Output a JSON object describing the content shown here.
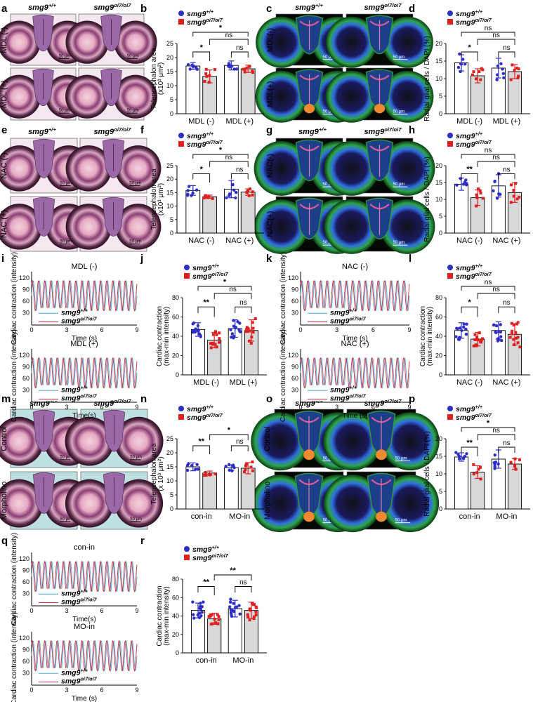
{
  "figure": {
    "panel_letters": [
      "a",
      "b",
      "c",
      "d",
      "e",
      "f",
      "g",
      "h",
      "i",
      "j",
      "k",
      "l",
      "m",
      "n",
      "o",
      "p",
      "q",
      "r"
    ],
    "genotype_wt": "smg9+/+",
    "genotype_mut": "smg9oi7/oi7",
    "scale_bar": "50 μm",
    "colors": {
      "wt": "#2d2dc8",
      "mut": "#e02020",
      "wt_trace": "#4aa8d8",
      "mut_trace": "#d42a3a",
      "bar_mut": "#d8d8d8"
    },
    "row_labels": {
      "a": [
        "MDL (-)",
        "MDL (+)"
      ],
      "c": [
        "MDL(-)",
        "MDL(+)"
      ],
      "e": [
        "NAC (-)",
        "NAC (+)"
      ],
      "g": [
        "NAC(-)",
        "NAC(+)"
      ],
      "m": [
        "Control",
        "Morpholino"
      ],
      "o": [
        "Control",
        "Morpholino"
      ]
    },
    "traces": {
      "i": [
        "MDL (-)",
        "MDL (+)"
      ],
      "k": [
        "NAC (-)",
        "NAC (+)"
      ],
      "q": [
        "con-in",
        "MO-in"
      ],
      "ylabel": "Cardiac contraction (intensity)",
      "xlabel": "Time (s)",
      "xlabel_alt": "Time(s)",
      "xticks": [
        "0",
        "3",
        "6",
        "9"
      ],
      "yticks": [
        "30",
        "60",
        "90",
        "120"
      ]
    },
    "labels": {
      "tel_area": "Telencephalon area",
      "tel_unit": "(x10³ μm²)",
      "tel_unit_alt": "(x 10³ μm²)",
      "radial": "Radial glial cells / DAPI (%)",
      "cardiac": "Cardiac contraction",
      "cardiac_unit": "(max-min intensity)",
      "ns": "ns",
      "star1": "*",
      "star2": "**"
    }
  },
  "chart_data": [
    {
      "panel": "b",
      "type": "bar",
      "categories": [
        "MDL (-)",
        "MDL (+)"
      ],
      "ylabel": "Telencephalon area (x10³ μm²)",
      "ylim": [
        0,
        25
      ],
      "yticks": [
        0,
        5,
        10,
        15,
        20,
        25
      ],
      "series": [
        {
          "name": "smg9+/+",
          "values": [
            17.0,
            17.2
          ],
          "err": [
            1.2,
            1.6
          ]
        },
        {
          "name": "smg9oi7/oi7",
          "values": [
            13.3,
            16.0
          ],
          "err": [
            2.3,
            1.3
          ]
        }
      ],
      "significance": [
        "*",
        "ns",
        "*",
        "ns"
      ]
    },
    {
      "panel": "d",
      "type": "bar",
      "categories": [
        "MDL (-)",
        "MDL (+)"
      ],
      "ylabel": "Radial glial cells / DAPI (%)",
      "ylim": [
        0,
        20
      ],
      "yticks": [
        0,
        5,
        10,
        15,
        20
      ],
      "series": [
        {
          "name": "smg9+/+",
          "values": [
            14.5,
            13.0
          ],
          "err": [
            2.3,
            2.8
          ]
        },
        {
          "name": "smg9oi7/oi7",
          "values": [
            10.8,
            12.0
          ],
          "err": [
            2.0,
            2.0
          ]
        }
      ],
      "significance": [
        "*",
        "ns",
        "ns",
        "ns"
      ]
    },
    {
      "panel": "f",
      "type": "bar",
      "categories": [
        "NAC (-)",
        "NAC (+)"
      ],
      "ylabel": "Telencephalon area (x10³ μm²)",
      "ylim": [
        0,
        25
      ],
      "yticks": [
        0,
        5,
        10,
        15,
        20,
        25
      ],
      "series": [
        {
          "name": "smg9+/+",
          "values": [
            15.8,
            16.3
          ],
          "err": [
            1.8,
            3.2
          ]
        },
        {
          "name": "smg9oi7/oi7",
          "values": [
            13.5,
            15.2
          ],
          "err": [
            0.6,
            1.2
          ]
        }
      ],
      "significance": [
        "*",
        "ns",
        "*",
        "ns"
      ]
    },
    {
      "panel": "h",
      "type": "bar",
      "categories": [
        "NAC (-)",
        "NAC (+)"
      ],
      "ylabel": "Radial glial cells / DAPI (%)",
      "ylim": [
        0,
        20
      ],
      "yticks": [
        0,
        5,
        10,
        15,
        20
      ],
      "series": [
        {
          "name": "smg9+/+",
          "values": [
            14.5,
            14.0
          ],
          "err": [
            1.8,
            3.3
          ]
        },
        {
          "name": "smg9oi7/oi7",
          "values": [
            10.5,
            12.0
          ],
          "err": [
            2.3,
            2.9
          ]
        }
      ],
      "significance": [
        "**",
        "ns",
        "ns",
        "ns"
      ]
    },
    {
      "panel": "j",
      "type": "bar",
      "categories": [
        "MDL (-)",
        "MDL (+)"
      ],
      "ylabel": "Cardiac contraction (max-min intensity)",
      "ylim": [
        0,
        80
      ],
      "yticks": [
        0,
        20,
        40,
        60,
        80
      ],
      "series": [
        {
          "name": "smg9+/+",
          "values": [
            47,
            48
          ],
          "err": [
            7,
            9
          ]
        },
        {
          "name": "smg9oi7/oi7",
          "values": [
            36,
            46
          ],
          "err": [
            8,
            11
          ]
        }
      ],
      "significance": [
        "**",
        "ns",
        "*",
        "ns"
      ]
    },
    {
      "panel": "l",
      "type": "bar",
      "categories": [
        "NAC (-)",
        "NAC (+)"
      ],
      "ylabel": "Cardiac contraction (max-min intensity)",
      "ylim": [
        0,
        80
      ],
      "yticks": [
        0,
        20,
        40,
        60,
        80
      ],
      "series": [
        {
          "name": "smg9+/+",
          "values": [
            46,
            46
          ],
          "err": [
            8,
            9
          ]
        },
        {
          "name": "smg9oi7/oi7",
          "values": [
            37,
            42
          ],
          "err": [
            7,
            11
          ]
        }
      ],
      "significance": [
        "*",
        "ns",
        "ns",
        "ns"
      ]
    },
    {
      "panel": "n",
      "type": "bar",
      "categories": [
        "con-in",
        "MO-in"
      ],
      "ylabel": "Telencephalon area (x 10³ μm²)",
      "ylim": [
        0,
        25
      ],
      "yticks": [
        0,
        5,
        10,
        15,
        20,
        25
      ],
      "series": [
        {
          "name": "smg9+/+",
          "values": [
            15.0,
            14.7
          ],
          "err": [
            1.4,
            1.0
          ]
        },
        {
          "name": "smg9oi7/oi7",
          "values": [
            12.8,
            14.5
          ],
          "err": [
            0.7,
            2.0
          ]
        }
      ],
      "significance": [
        "**",
        "*",
        "ns"
      ]
    },
    {
      "panel": "p",
      "type": "bar",
      "categories": [
        "con-in",
        "MO-in"
      ],
      "ylabel": "Radial glial cells / DAPI (%)",
      "ylim": [
        0,
        20
      ],
      "yticks": [
        0,
        5,
        10,
        15,
        20
      ],
      "series": [
        {
          "name": "smg9+/+",
          "values": [
            14.8,
            14.2
          ],
          "err": [
            1.2,
            2.6
          ]
        },
        {
          "name": "smg9oi7/oi7",
          "values": [
            10.5,
            12.8
          ],
          "err": [
            1.8,
            1.5
          ]
        }
      ],
      "significance": [
        "**",
        "ns",
        "*",
        "ns"
      ]
    },
    {
      "panel": "r",
      "type": "bar",
      "categories": [
        "con-in",
        "MO-in"
      ],
      "ylabel": "Cardiac contraction (max-min intensity)",
      "ylim": [
        0,
        80
      ],
      "yticks": [
        0,
        20,
        40,
        60,
        80
      ],
      "series": [
        {
          "name": "smg9+/+",
          "values": [
            46,
            48
          ],
          "err": [
            8,
            9
          ]
        },
        {
          "name": "smg9oi7/oi7",
          "values": [
            37,
            46
          ],
          "err": [
            6,
            9
          ]
        }
      ],
      "significance": [
        "**",
        "**",
        "ns"
      ]
    }
  ]
}
